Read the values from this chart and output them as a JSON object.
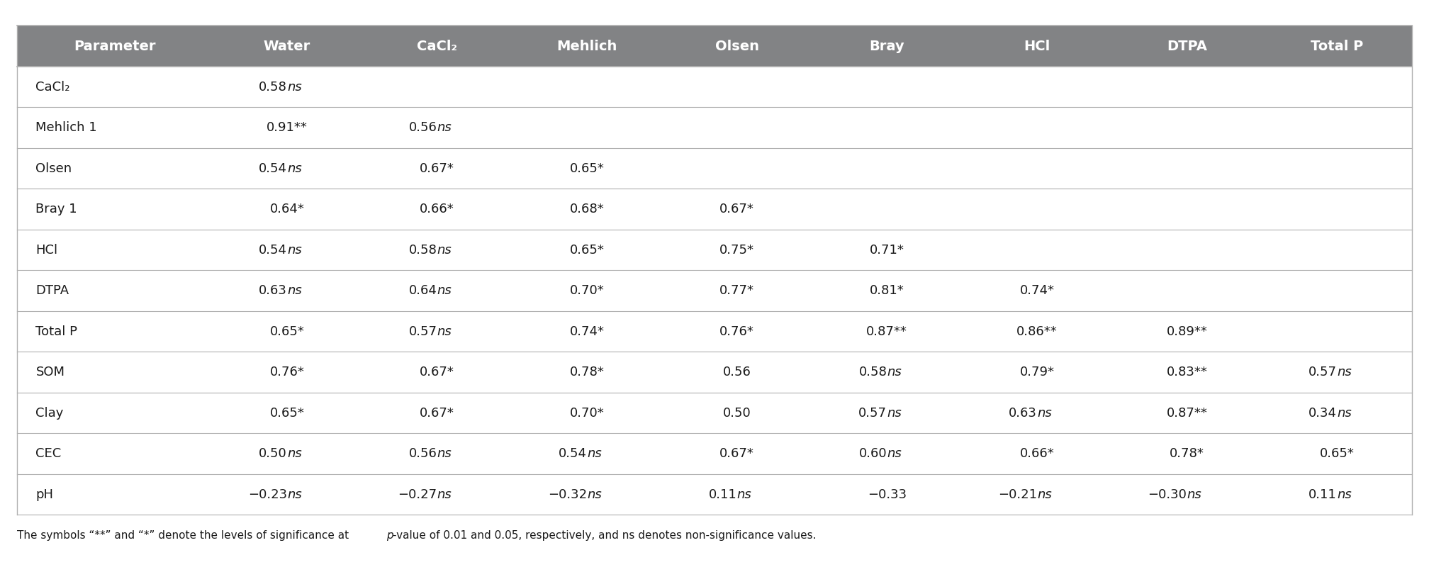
{
  "headers": [
    "Parameter",
    "Water",
    "CaCl₂",
    "Mehlich",
    "Olsen",
    "Bray",
    "HCl",
    "DTPA",
    "Total P"
  ],
  "rows": [
    [
      "CaCl₂",
      "0.58ns",
      "",
      "",
      "",
      "",
      "",
      "",
      ""
    ],
    [
      "Mehlich 1",
      "0.91**",
      "0.56ns",
      "",
      "",
      "",
      "",
      "",
      ""
    ],
    [
      "Olsen",
      "0.54ns",
      "0.67*",
      "0.65*",
      "",
      "",
      "",
      "",
      ""
    ],
    [
      "Bray 1",
      "0.64*",
      "0.66*",
      "0.68*",
      "0.67*",
      "",
      "",
      "",
      ""
    ],
    [
      "HCl",
      "0.54ns",
      "0.58ns",
      "0.65*",
      "0.75*",
      "0.71*",
      "",
      "",
      ""
    ],
    [
      "DTPA",
      "0.63ns",
      "0.64ns",
      "0.70*",
      "0.77*",
      "0.81*",
      "0.74*",
      "",
      ""
    ],
    [
      "Total P",
      "0.65*",
      "0.57ns",
      "0.74*",
      "0.76*",
      "0.87**",
      "0.86**",
      "0.89**",
      ""
    ],
    [
      "SOM",
      "0.76*",
      "0.67*",
      "0.78*",
      "0.56",
      "0.58ns",
      "0.79*",
      "0.83**",
      "0.57ns"
    ],
    [
      "Clay",
      "0.65*",
      "0.67*",
      "0.70*",
      "0.50",
      "0.57ns",
      "0.63ns",
      "0.87**",
      "0.34ns"
    ],
    [
      "CEC",
      "0.50ns",
      "0.56ns",
      "0.54ns",
      "0.67*",
      "0.60ns",
      "0.66*",
      "0.78*",
      "0.65*"
    ],
    [
      "pH",
      "−0.23ns",
      "−0.27ns",
      "−0.32ns",
      "0.11ns",
      "−0.33",
      "−0.21ns",
      "−0.30ns",
      "0.11ns"
    ]
  ],
  "footer_parts": [
    {
      "text": "The symbols “**” and “*” denote the levels of significance at ",
      "style": "normal"
    },
    {
      "text": "p",
      "style": "italic"
    },
    {
      "text": "-value of 0.01 and 0.05, respectively, and ns denotes non-significance values.",
      "style": "normal"
    }
  ],
  "header_bg": "#828385",
  "header_fg": "#ffffff",
  "row_bg": "#ffffff",
  "border_color": "#b0b0b0",
  "fig_bg": "#ffffff",
  "col_widths": [
    1.3,
    1.0,
    1.0,
    1.0,
    1.0,
    1.0,
    1.0,
    1.0,
    1.0
  ],
  "fontsize_header": 14,
  "fontsize_cell": 13,
  "fontsize_footer": 11
}
